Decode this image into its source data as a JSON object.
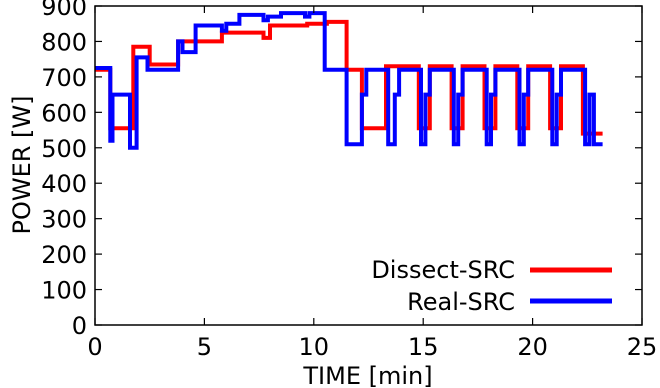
{
  "chart_data": {
    "type": "line",
    "xlabel": "TIME [min]",
    "ylabel": "POWER [W]",
    "xlim": [
      0,
      25
    ],
    "ylim": [
      0,
      900
    ],
    "xticks": [
      0,
      5,
      10,
      15,
      20,
      25
    ],
    "yticks": [
      0,
      100,
      200,
      300,
      400,
      500,
      600,
      700,
      800,
      900
    ],
    "grid": false,
    "legend_position": "bottom-right",
    "series": [
      {
        "name": "Dissect-SRC",
        "color": "#ff0000",
        "x": [
          0,
          0.7,
          0.7,
          1.75,
          1.75,
          2.5,
          2.5,
          3.8,
          3.8,
          5.8,
          5.8,
          7.7,
          7.7,
          8.0,
          8.0,
          9.7,
          9.7,
          10.6,
          10.6,
          11.5,
          11.5,
          12.2,
          12.2,
          13.3,
          13.3,
          14.8,
          14.8,
          15.3,
          15.3,
          16.3,
          16.3,
          16.8,
          16.8,
          17.8,
          17.8,
          18.3,
          18.3,
          19.3,
          19.3,
          19.8,
          19.8,
          20.8,
          20.8,
          21.3,
          21.3,
          22.3,
          22.3,
          23.2
        ],
        "y": [
          720,
          720,
          555,
          555,
          785,
          785,
          735,
          735,
          800,
          800,
          825,
          825,
          810,
          810,
          845,
          845,
          850,
          850,
          855,
          855,
          720,
          720,
          555,
          555,
          730,
          730,
          555,
          555,
          730,
          730,
          555,
          555,
          730,
          730,
          555,
          555,
          730,
          730,
          555,
          555,
          730,
          730,
          555,
          555,
          730,
          730,
          540,
          540
        ]
      },
      {
        "name": "Real-SRC",
        "color": "#0000ff",
        "x": [
          0,
          0.7,
          0.7,
          0.8,
          0.8,
          1.6,
          1.6,
          1.9,
          1.9,
          2.4,
          2.4,
          3.8,
          3.8,
          4.0,
          4.0,
          4.6,
          4.6,
          5.8,
          5.8,
          6.0,
          6.0,
          6.6,
          6.6,
          7.7,
          7.7,
          7.9,
          7.9,
          8.5,
          8.5,
          9.6,
          9.6,
          9.8,
          9.8,
          10.5,
          10.5,
          11.5,
          11.5,
          12.2,
          12.2,
          12.4,
          12.4,
          13.4,
          13.4,
          13.7,
          13.7,
          13.9,
          13.9,
          14.9,
          14.9,
          15.1,
          15.1,
          15.3,
          15.3,
          16.4,
          16.4,
          16.6,
          16.6,
          16.8,
          16.8,
          17.9,
          17.9,
          18.1,
          18.1,
          18.3,
          18.3,
          19.4,
          19.4,
          19.6,
          19.6,
          19.8,
          19.8,
          20.9,
          20.9,
          21.1,
          21.1,
          21.3,
          21.3,
          22.4,
          22.4,
          22.6,
          22.6,
          22.8,
          22.8,
          23.2
        ],
        "y": [
          725,
          725,
          520,
          520,
          650,
          650,
          500,
          500,
          755,
          755,
          720,
          720,
          800,
          800,
          770,
          770,
          845,
          845,
          830,
          830,
          850,
          850,
          875,
          875,
          860,
          860,
          870,
          870,
          880,
          880,
          870,
          870,
          880,
          880,
          720,
          720,
          510,
          510,
          650,
          650,
          720,
          720,
          510,
          510,
          650,
          650,
          720,
          720,
          510,
          510,
          650,
          650,
          720,
          720,
          510,
          510,
          650,
          650,
          720,
          720,
          510,
          510,
          650,
          650,
          720,
          720,
          510,
          510,
          650,
          650,
          720,
          720,
          510,
          510,
          650,
          650,
          720,
          720,
          510,
          510,
          650,
          650,
          510,
          510
        ]
      }
    ]
  }
}
